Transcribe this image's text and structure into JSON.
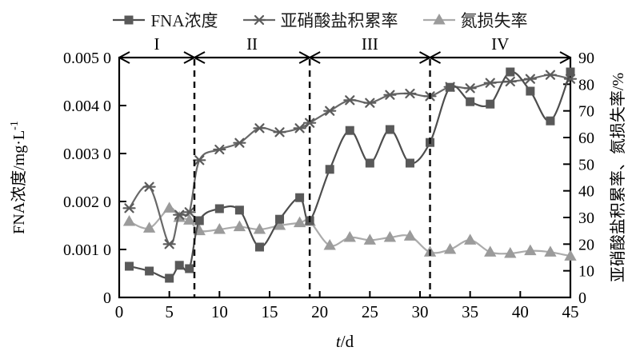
{
  "legend": {
    "items": [
      {
        "label": "FNA浓度",
        "marker": "square"
      },
      {
        "label": "亚硝酸盐积累率",
        "marker": "asterisk"
      },
      {
        "label": "氮损失率",
        "marker": "triangle"
      }
    ]
  },
  "chart_data": {
    "type": "line",
    "title": "",
    "xlabel": "t/d",
    "ylabel_left": "FNA浓度/mg·L⁻¹",
    "ylabel_right": "亚硝酸盐积累率、氮损失率/%",
    "x_range": [
      0,
      45
    ],
    "x_ticks": [
      0,
      5,
      10,
      15,
      20,
      25,
      30,
      35,
      40,
      45
    ],
    "y_left_range": [
      0,
      0.005
    ],
    "y_left_tick_values": [
      0,
      0.001,
      0.002,
      0.003,
      0.004,
      0.005
    ],
    "y_left_tick_labels": [
      "0",
      "0.001 0",
      "0.002 0",
      "0.003 0",
      "0.004 0",
      "0.005 0"
    ],
    "y_right_range": [
      0,
      90
    ],
    "y_right_tick_values": [
      0,
      10,
      20,
      30,
      40,
      50,
      60,
      70,
      80,
      90
    ],
    "grid": false,
    "legend_position": "top",
    "x": [
      1,
      3,
      5,
      6,
      7,
      8,
      10,
      12,
      14,
      16,
      18,
      19,
      21,
      23,
      25,
      27,
      29,
      31,
      33,
      35,
      37,
      39,
      41,
      43,
      45
    ],
    "series": [
      {
        "name": "氮损失率",
        "axis": "right",
        "marker": "triangle",
        "line_color": "#ababab",
        "marker_color": "#9b9b9b",
        "values": [
          28.5,
          26,
          33.5,
          30,
          29,
          25,
          25.5,
          26.5,
          25.5,
          27,
          28,
          28.5,
          19.5,
          22.5,
          21.5,
          22.5,
          23,
          17,
          18,
          21.5,
          17,
          16.5,
          17.5,
          17,
          15.5
        ]
      },
      {
        "name": "亚硝酸盐积累率",
        "axis": "right",
        "marker": "asterisk",
        "line_color": "#686868",
        "marker_color": "#5c5c5c",
        "values": [
          33.5,
          41.5,
          20,
          31,
          32,
          51.5,
          55.5,
          58,
          63.5,
          62,
          63.5,
          65.5,
          70,
          74,
          73,
          76,
          76.5,
          75.5,
          79,
          78.5,
          80.5,
          81,
          82,
          83.5,
          82
        ]
      },
      {
        "name": "FNA浓度",
        "axis": "left",
        "marker": "square",
        "line_color": "#4d4d4d",
        "marker_color": "#595959",
        "values": [
          0.00065,
          0.00055,
          0.0004,
          0.00067,
          0.0006,
          0.0016,
          0.00185,
          0.00182,
          0.00105,
          0.00163,
          0.00208,
          0.0016,
          0.00267,
          0.00348,
          0.0028,
          0.0035,
          0.0028,
          0.00323,
          0.00438,
          0.00408,
          0.00403,
          0.0047,
          0.0043,
          0.00368,
          0.0047
        ]
      }
    ],
    "phases": [
      {
        "label": "I",
        "from": 0,
        "to": 7.5
      },
      {
        "label": "II",
        "from": 7.5,
        "to": 19
      },
      {
        "label": "III",
        "from": 19,
        "to": 31
      },
      {
        "label": "IV",
        "from": 31,
        "to": 45
      }
    ],
    "boundaries": [
      7.5,
      19,
      31
    ],
    "colors": {
      "axis": "#000000",
      "boundary_line": "#111111",
      "text": "#000000"
    }
  }
}
